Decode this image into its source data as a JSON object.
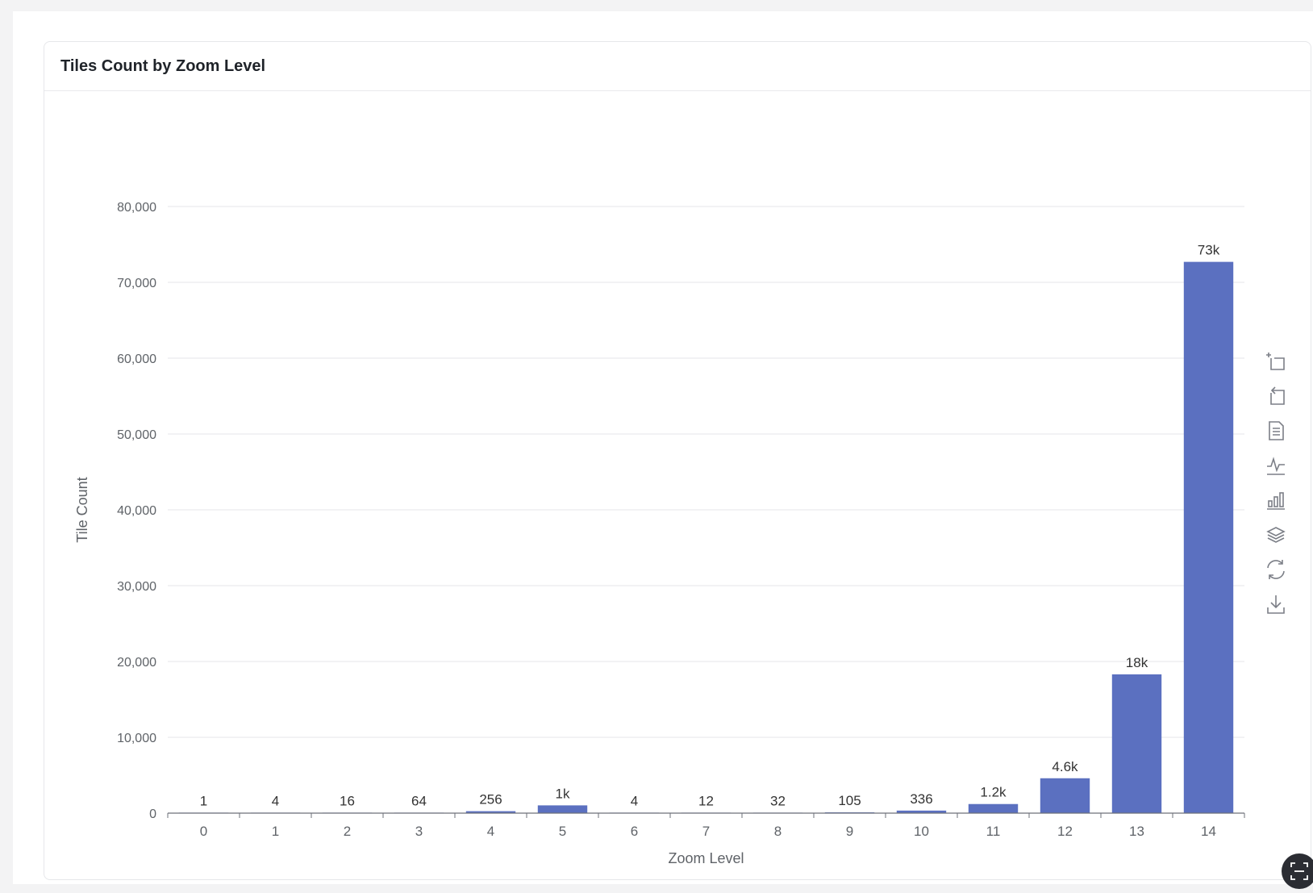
{
  "card": {
    "title": "Tiles Count by Zoom Level"
  },
  "chart_data": {
    "type": "bar",
    "title": "Tiles Count by Zoom Level",
    "xlabel": "Zoom Level",
    "ylabel": "Tile Count",
    "categories": [
      "0",
      "1",
      "2",
      "3",
      "4",
      "5",
      "6",
      "7",
      "8",
      "9",
      "10",
      "11",
      "12",
      "13",
      "14"
    ],
    "values": [
      1,
      4,
      16,
      64,
      256,
      1024,
      4,
      12,
      32,
      105,
      336,
      1200,
      4600,
      18300,
      72700
    ],
    "data_labels": [
      "1",
      "4",
      "16",
      "64",
      "256",
      "1k",
      "4",
      "12",
      "32",
      "105",
      "336",
      "1.2k",
      "4.6k",
      "18k",
      "73k"
    ],
    "ylim": [
      0,
      80000
    ],
    "yticks": [
      0,
      10000,
      20000,
      30000,
      40000,
      50000,
      60000,
      70000,
      80000
    ],
    "ytick_labels": [
      "0",
      "10,000",
      "20,000",
      "30,000",
      "40,000",
      "50,000",
      "60,000",
      "70,000",
      "80,000"
    ],
    "grid": true,
    "bar_color": "#5b70c0"
  },
  "toolbox": {
    "tools": [
      {
        "name": "zoom-select-icon"
      },
      {
        "name": "zoom-reset-icon"
      },
      {
        "name": "data-view-icon"
      },
      {
        "name": "line-chart-icon"
      },
      {
        "name": "bar-chart-icon"
      },
      {
        "name": "stack-icon"
      },
      {
        "name": "restore-icon"
      },
      {
        "name": "download-icon"
      }
    ]
  }
}
